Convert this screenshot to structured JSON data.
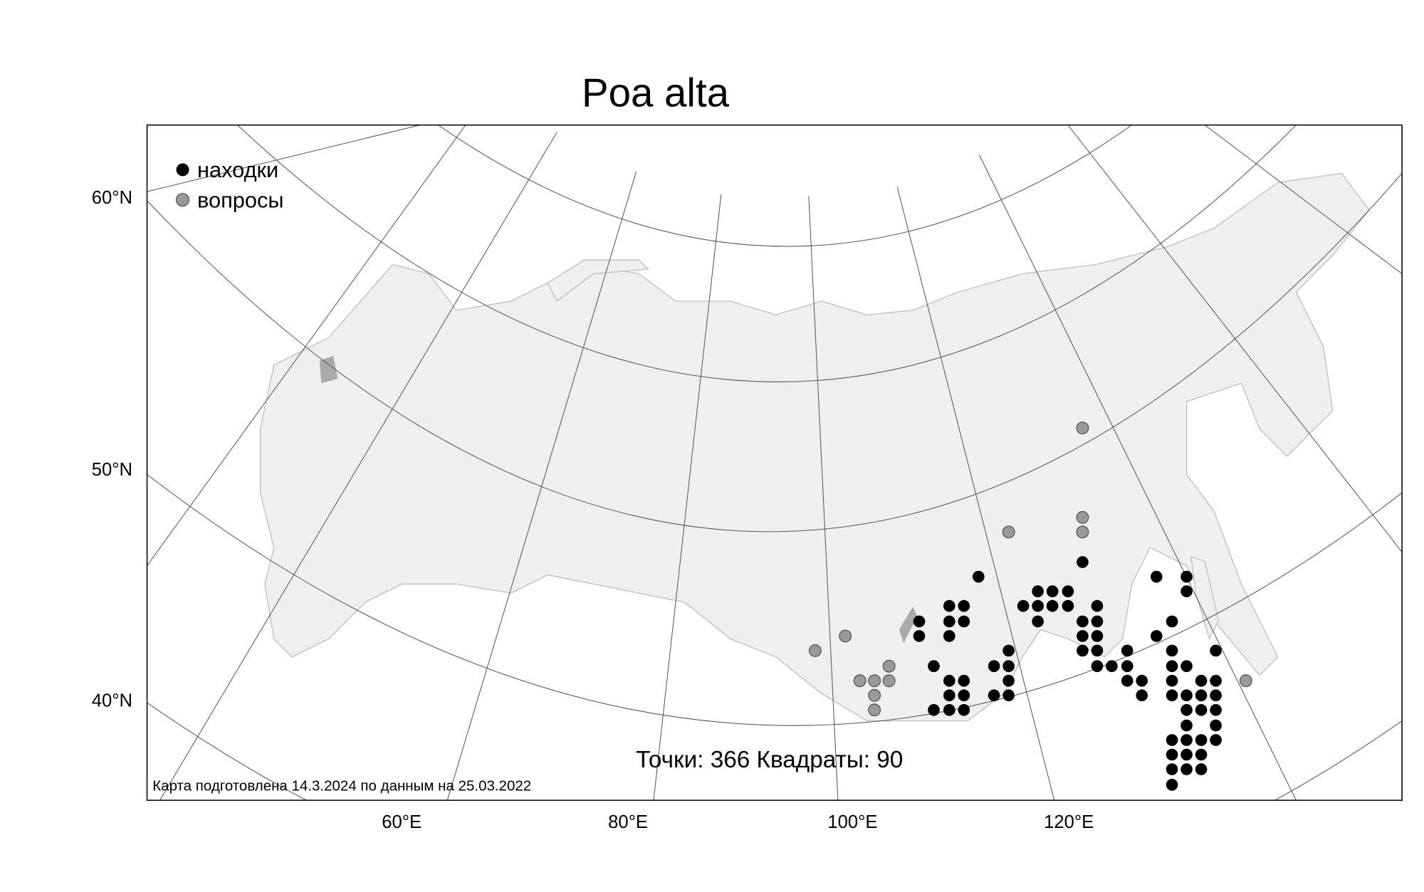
{
  "title": "Poa alta",
  "legend": {
    "found": "находки",
    "questionable": "вопросы"
  },
  "lat_labels": [
    "60°N",
    "50°N",
    "40°N"
  ],
  "lon_labels": [
    "60°E",
    "80°E",
    "100°E",
    "120°E"
  ],
  "summary": "Точки: 366 Квадраты: 90",
  "note": "Карта подготовлена 14.3.2024 по данным на 25.03.2022"
}
